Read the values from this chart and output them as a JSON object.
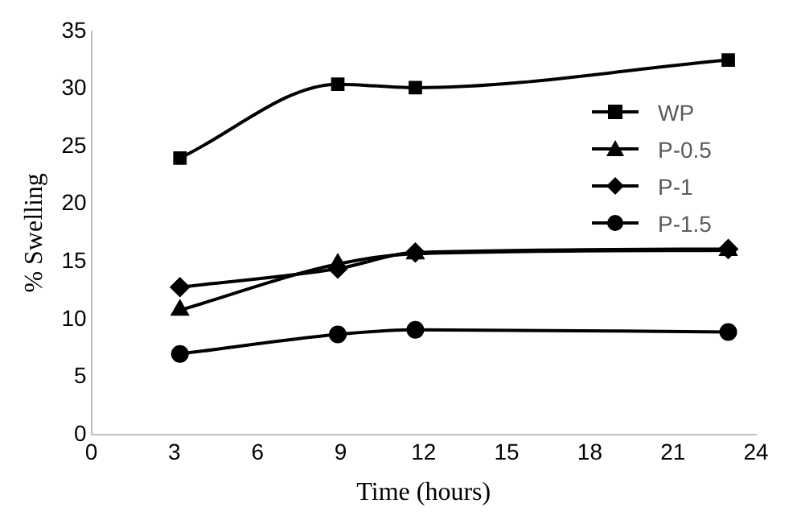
{
  "chart_data": {
    "type": "line",
    "xlabel": "Time (hours)",
    "ylabel": "% Swelling",
    "xlim": [
      0,
      24
    ],
    "xticks": [
      0,
      3,
      6,
      9,
      12,
      15,
      18,
      21,
      24
    ],
    "ylim": [
      0,
      35
    ],
    "yticks": [
      0,
      5,
      10,
      15,
      20,
      25,
      30,
      35
    ],
    "grid": false,
    "legend": "top right",
    "line_style": "solid",
    "series": [
      {
        "name": "WP",
        "color": "#000000",
        "marker": "square",
        "x": [
          3.2,
          8.9,
          11.7,
          23
        ],
        "values": [
          24,
          30.4,
          30.1,
          32.5
        ]
      },
      {
        "name": "P-0.5",
        "color": "#000000",
        "marker": "triangle",
        "x": [
          3.2,
          8.9,
          11.7,
          23
        ],
        "values": [
          10.8,
          14.8,
          15.7,
          16
        ]
      },
      {
        "name": "P-1",
        "color": "#000000",
        "marker": "diamond",
        "x": [
          3.2,
          8.9,
          11.7,
          23
        ],
        "values": [
          12.8,
          14.4,
          15.8,
          16.1
        ]
      },
      {
        "name": "P-1.5",
        "color": "#000000",
        "marker": "circle",
        "x": [
          3.2,
          8.9,
          11.7,
          23
        ],
        "values": [
          7,
          8.7,
          9.1,
          8.9
        ]
      }
    ]
  }
}
